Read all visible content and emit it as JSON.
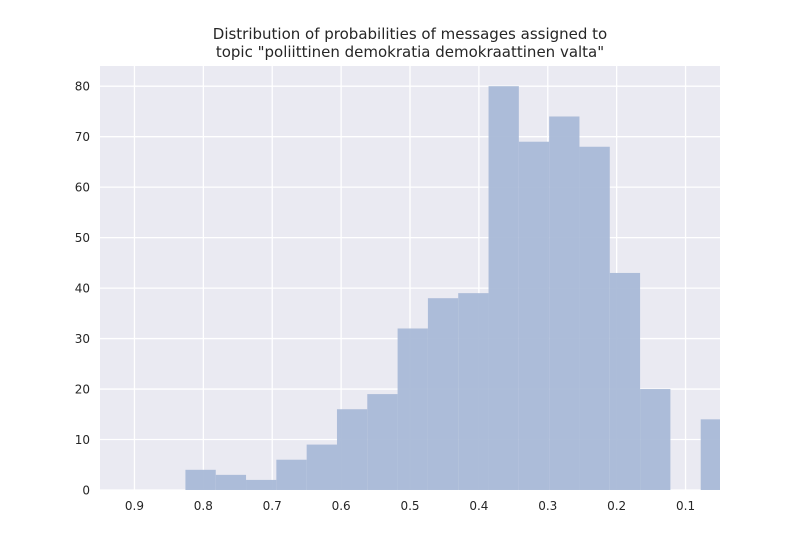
{
  "chart_data": {
    "type": "bar",
    "title": "Distribution of probabilities of messages assigned to\ntopic \"poliittinen demokratia demokraattinen valta\"",
    "title_lines": [
      "Distribution of probabilities of messages assigned to",
      "topic \"poliittinen demokratia demokraattinen valta\""
    ],
    "xlabel": "",
    "ylabel": "",
    "x_axis_inverted": true,
    "xlim": [
      0.95,
      0.05
    ],
    "ylim": [
      0,
      84
    ],
    "grid": true,
    "x_ticks": [
      0.9,
      0.8,
      0.7,
      0.6,
      0.5,
      0.4,
      0.3,
      0.2,
      0.1
    ],
    "x_tick_labels": [
      "0.9",
      "0.8",
      "0.7",
      "0.6",
      "0.5",
      "0.4",
      "0.3",
      "0.2",
      "0.1"
    ],
    "y_ticks": [
      0,
      10,
      20,
      30,
      40,
      50,
      60,
      70,
      80
    ],
    "y_tick_labels": [
      "0",
      "10",
      "20",
      "30",
      "40",
      "50",
      "60",
      "70",
      "80"
    ],
    "bars": [
      {
        "x0": 0.826,
        "x1": 0.782,
        "count": 4
      },
      {
        "x0": 0.782,
        "x1": 0.738,
        "count": 3
      },
      {
        "x0": 0.738,
        "x1": 0.694,
        "count": 2
      },
      {
        "x0": 0.694,
        "x1": 0.65,
        "count": 6
      },
      {
        "x0": 0.65,
        "x1": 0.606,
        "count": 9
      },
      {
        "x0": 0.606,
        "x1": 0.562,
        "count": 16
      },
      {
        "x0": 0.562,
        "x1": 0.518,
        "count": 19
      },
      {
        "x0": 0.518,
        "x1": 0.474,
        "count": 32
      },
      {
        "x0": 0.474,
        "x1": 0.43,
        "count": 38
      },
      {
        "x0": 0.43,
        "x1": 0.386,
        "count": 39
      },
      {
        "x0": 0.386,
        "x1": 0.342,
        "count": 80
      },
      {
        "x0": 0.342,
        "x1": 0.298,
        "count": 69
      },
      {
        "x0": 0.298,
        "x1": 0.254,
        "count": 74
      },
      {
        "x0": 0.254,
        "x1": 0.21,
        "count": 68
      },
      {
        "x0": 0.21,
        "x1": 0.166,
        "count": 43
      },
      {
        "x0": 0.166,
        "x1": 0.122,
        "count": 20
      },
      {
        "x0": 0.122,
        "x1": 0.078,
        "count": 0
      },
      {
        "x0": 0.078,
        "x1": 0.05,
        "count": 14
      }
    ],
    "colors": {
      "bar": "#a9b9d7",
      "plot_background": "#eaeaf2",
      "grid": "#ffffff",
      "text": "#262626"
    }
  }
}
